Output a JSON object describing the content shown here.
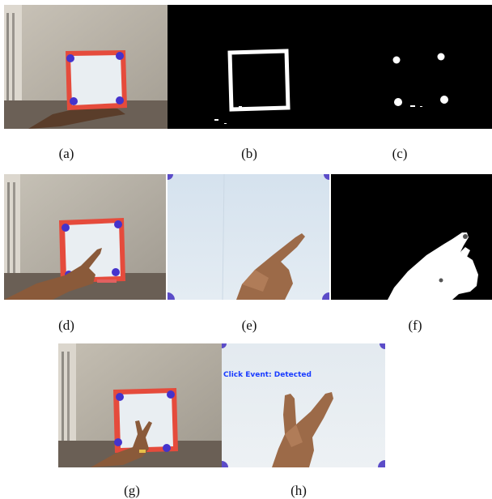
{
  "captions": {
    "a": "(a)",
    "b": "(b)",
    "c": "(c)",
    "d": "(d)",
    "e": "(e)",
    "f": "(f)",
    "g": "(g)",
    "h": "(h)"
  },
  "overlay": {
    "click_event": "Click Event: Detected"
  },
  "colors": {
    "frame_red": "#e85a4c",
    "marker_blue": "#4433cc",
    "paper": "#dde6ee",
    "wall": "#b9b3a8",
    "skin": "#9c6a48",
    "mask_white": "#ffffff",
    "mask_black": "#000000"
  }
}
